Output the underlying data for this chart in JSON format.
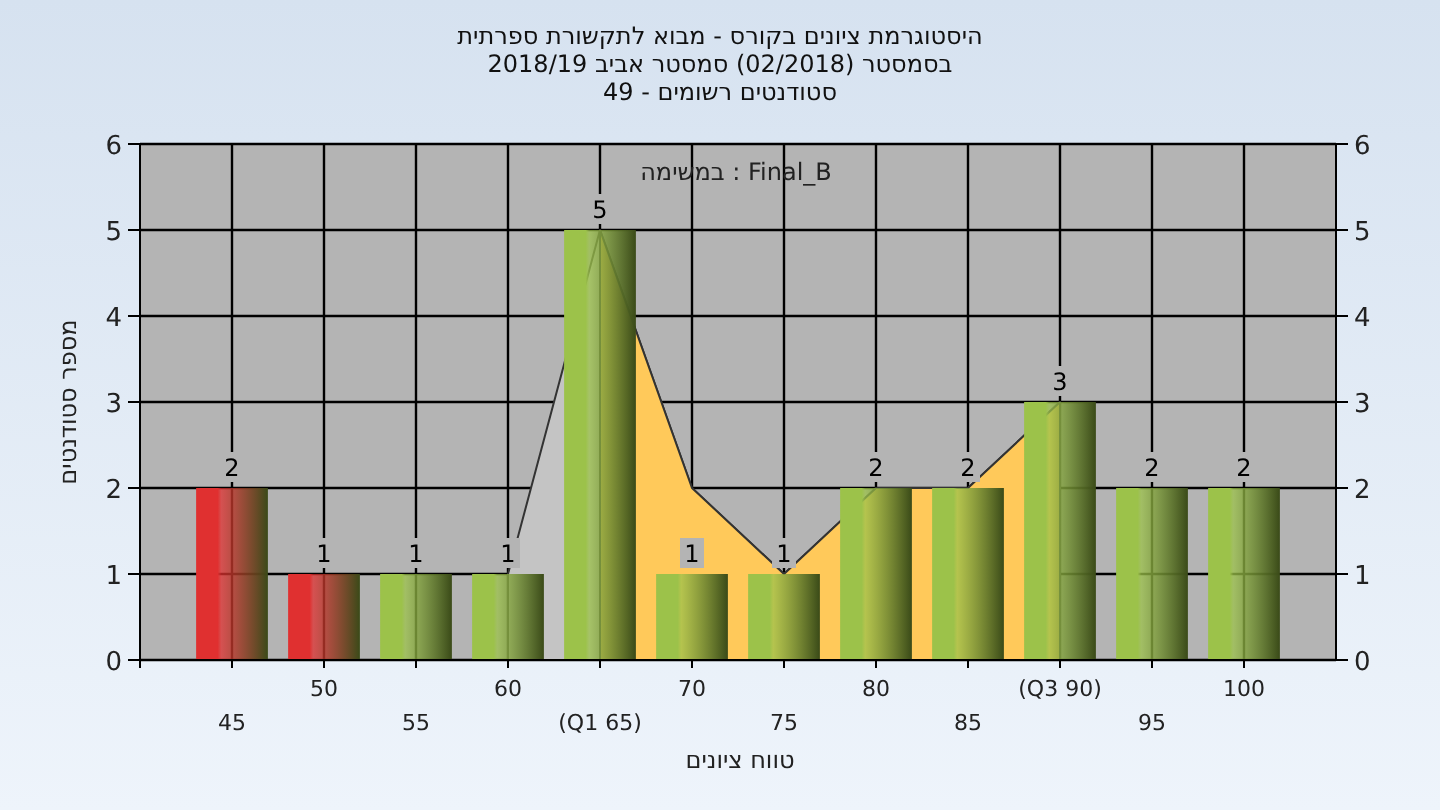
{
  "chart_data": {
    "type": "bar",
    "title": "היסטוגרמת ציונים בקורס - מבוא לתקשורת ספרתית",
    "subtitle": [
      "בסמסטר (02/2018) סמסטר אביב 2018/19",
      "סטודנטים רשומים - 49"
    ],
    "xlabel": "טווח ציונים",
    "ylabel": "מספר סטודנטים",
    "annotations": [
      "במשימה : Final_B"
    ],
    "categories": [
      "45",
      "50",
      "55",
      "60",
      "(Q1 65)",
      "70",
      "75",
      "80",
      "85",
      "(Q3 90)",
      "95",
      "100"
    ],
    "series": [
      {
        "type": "area",
        "color": "#c4c4c4",
        "values": [
          null,
          null,
          null,
          1,
          5,
          2,
          1,
          2,
          2,
          3,
          null,
          null
        ]
      },
      {
        "type": "area",
        "color": "#ffc95a",
        "values": [
          null,
          null,
          null,
          null,
          5,
          2,
          1,
          2,
          2,
          3,
          null,
          null
        ]
      },
      {
        "type": "bar",
        "colors": [
          "#e03030",
          "#e03030",
          "#9cc24a",
          "#9cc24a",
          "#9cc24a",
          "#9cc24a",
          "#9cc24a",
          "#9cc24a",
          "#9cc24a",
          "#9cc24a",
          "#9cc24a",
          "#9cc24a"
        ],
        "values": [
          2,
          1,
          1,
          1,
          5,
          1,
          1,
          2,
          2,
          3,
          2,
          2
        ],
        "value_labels": [
          "2",
          "1",
          "1",
          "1",
          "5",
          "1",
          "1",
          "2",
          "2",
          "3",
          "2",
          "2"
        ]
      }
    ],
    "ylim": [
      0,
      6
    ],
    "yticks": [
      0,
      1,
      2,
      3,
      4,
      5,
      6
    ],
    "y2lim": [
      0,
      6
    ],
    "y2ticks": [
      0,
      1,
      2,
      3,
      4,
      5,
      6
    ],
    "grid": true
  }
}
